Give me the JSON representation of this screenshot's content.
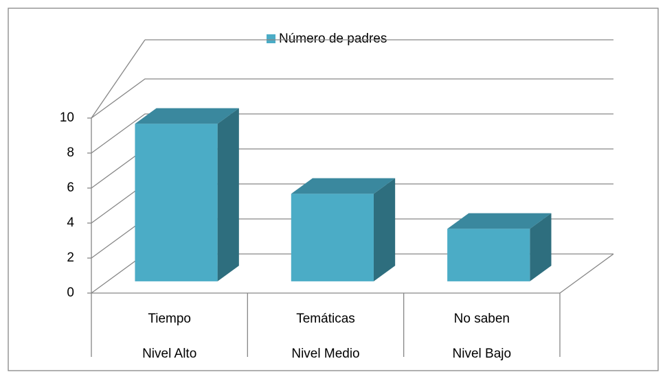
{
  "chart_data": {
    "type": "bar3d",
    "legend": "Número de padres",
    "categories": [
      "Tiempo",
      "Temáticas",
      "No saben"
    ],
    "category_groups": [
      "Nivel Alto",
      "Nivel Medio",
      "Nivel Bajo"
    ],
    "values": [
      9,
      5,
      3
    ],
    "color": "#4bacc6",
    "ylim": [
      0,
      10
    ],
    "yticks": [
      0,
      2,
      4,
      6,
      8,
      10
    ],
    "grid": true
  }
}
